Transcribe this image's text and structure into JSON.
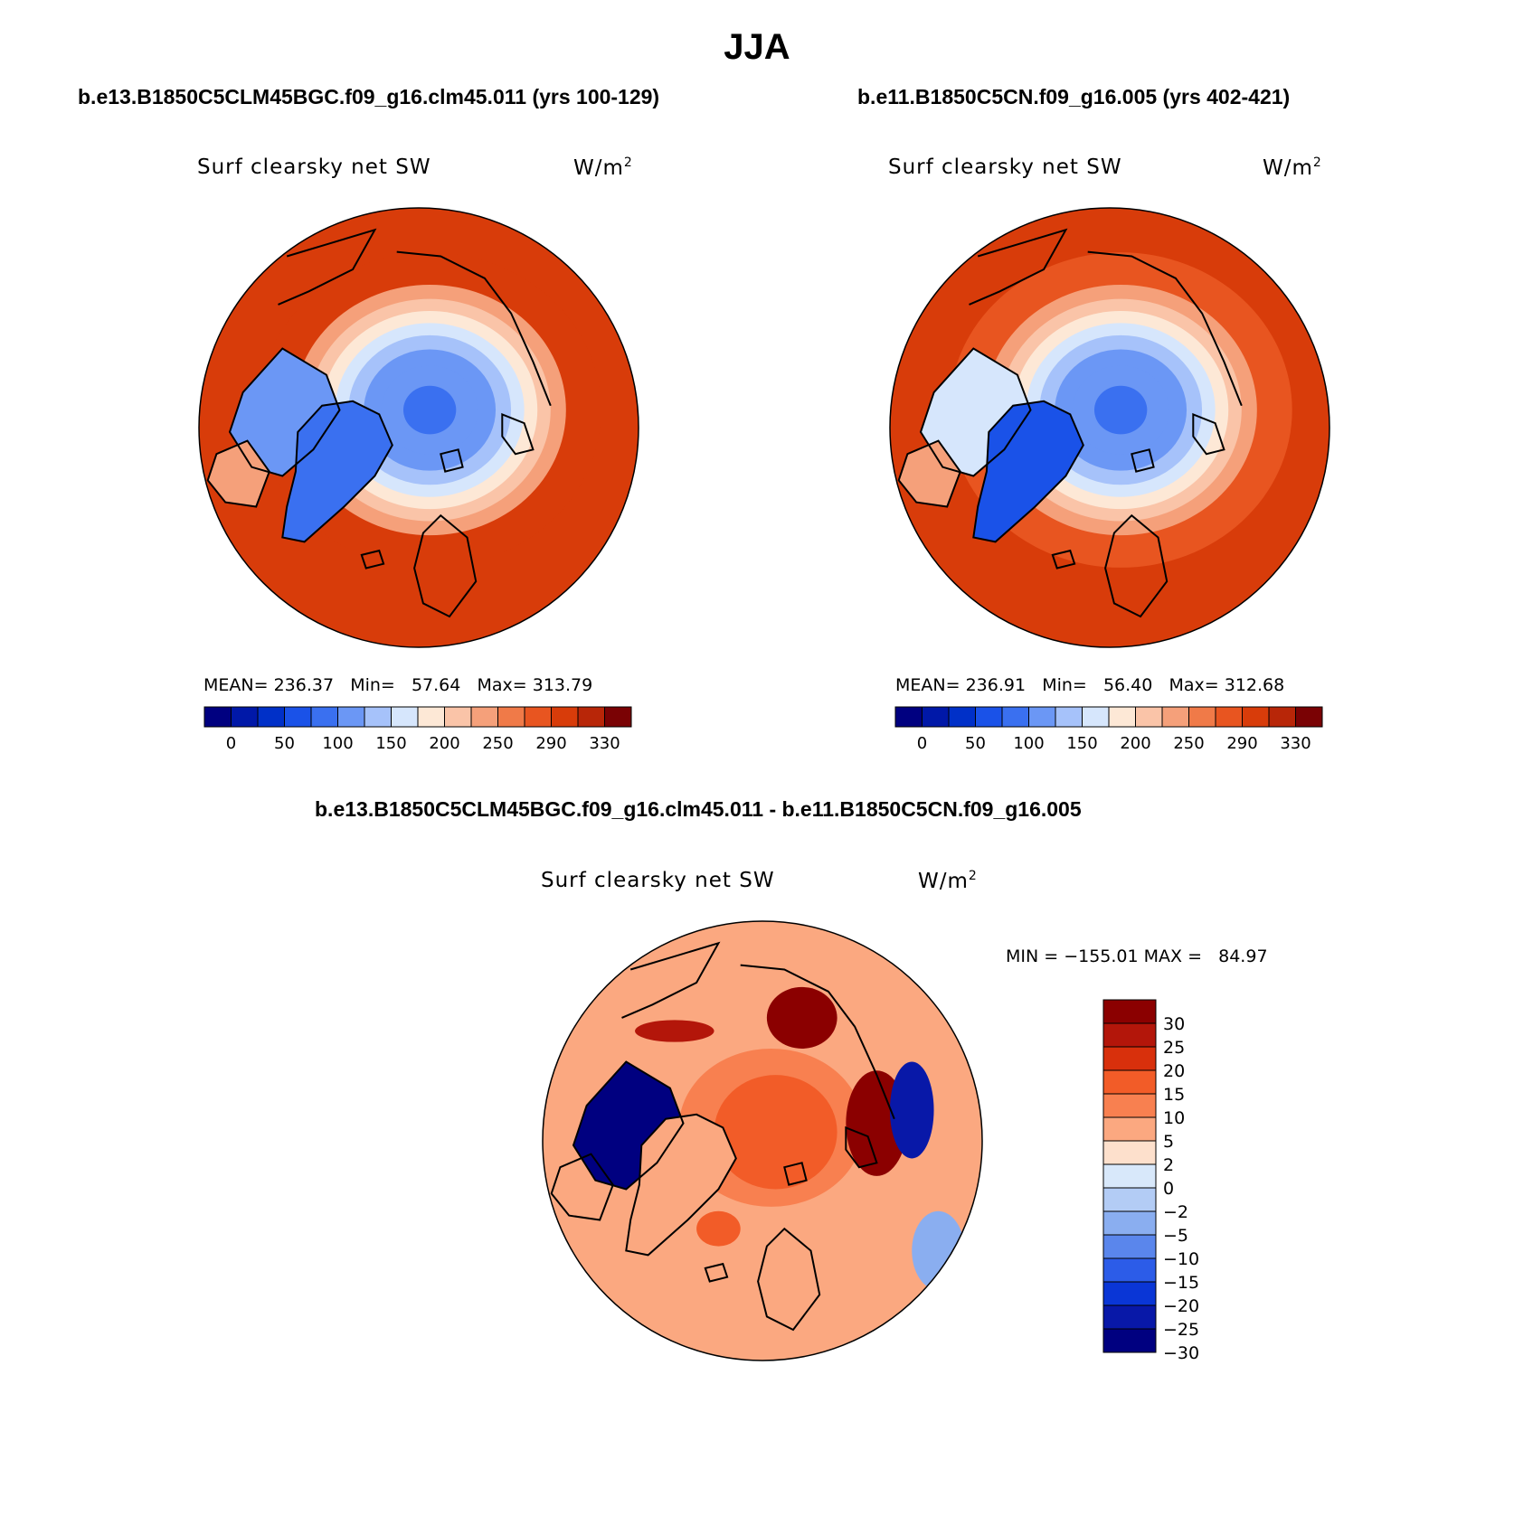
{
  "figure": {
    "title": "JJA"
  },
  "chart_data": [
    {
      "type": "heatmap",
      "projection": "polar-stereographic-north",
      "case_title": "b.e13.B1850C5CLM45BGC.f09_g16.clm45.011 (yrs 100-129)",
      "variable": "Surf clearsky net SW",
      "units": "W/m",
      "units_exp": "2",
      "stats": {
        "mean_label": "MEAN=",
        "mean": "236.37",
        "min_label": "Min=",
        "min": "57.64",
        "max_label": "Max=",
        "max": "313.79"
      },
      "colorbar": {
        "orientation": "horizontal",
        "colors": [
          "#000080",
          "#0018a8",
          "#0030c8",
          "#1a52e8",
          "#3a70f0",
          "#6b97f5",
          "#a6c2fa",
          "#d6e6fc",
          "#fde8d6",
          "#fac4a8",
          "#f5a07a",
          "#f07a48",
          "#e85520",
          "#d83c0a",
          "#b82608",
          "#7a0204"
        ],
        "tick_labels": [
          "0",
          "50",
          "100",
          "150",
          "200",
          "250",
          "290",
          "330"
        ]
      },
      "field": {
        "pole_value": 90,
        "ring_value": 305,
        "greenland_value": 90,
        "canadian_archipelago_value": 110
      }
    },
    {
      "type": "heatmap",
      "projection": "polar-stereographic-north",
      "case_title": "b.e11.B1850C5CN.f09_g16.005 (yrs 402-421)",
      "variable": "Surf clearsky net SW",
      "units": "W/m",
      "units_exp": "2",
      "stats": {
        "mean_label": "MEAN=",
        "mean": "236.91",
        "min_label": "Min=",
        "min": "56.40",
        "max_label": "Max=",
        "max": "312.68"
      },
      "colorbar": {
        "orientation": "horizontal",
        "colors": [
          "#000080",
          "#0018a8",
          "#0030c8",
          "#1a52e8",
          "#3a70f0",
          "#6b97f5",
          "#a6c2fa",
          "#d6e6fc",
          "#fde8d6",
          "#fac4a8",
          "#f5a07a",
          "#f07a48",
          "#e85520",
          "#d83c0a",
          "#b82608",
          "#7a0204"
        ],
        "tick_labels": [
          "0",
          "50",
          "100",
          "150",
          "200",
          "250",
          "290",
          "330"
        ]
      },
      "field": {
        "pole_value": 80,
        "ring_value": 300,
        "greenland_value": 70,
        "canadian_archipelago_value": 160
      }
    },
    {
      "type": "heatmap",
      "projection": "polar-stereographic-north",
      "case_title": "b.e13.B1850C5CLM45BGC.f09_g16.clm45.011 - b.e11.B1850C5CN.f09_g16.005",
      "variable": "Surf clearsky net SW",
      "units": "W/m",
      "units_exp": "2",
      "stats": {
        "text": "MIN = −155.01 MAX =   84.97"
      },
      "colorbar": {
        "orientation": "vertical",
        "colors": [
          "#8b0000",
          "#b3160a",
          "#d8300c",
          "#f25c28",
          "#f88050",
          "#fba880",
          "#fde0cc",
          "#d8e8fa",
          "#b3ccf5",
          "#8aaef0",
          "#5a86ec",
          "#2c5ce8",
          "#0a36d6",
          "#0818a8",
          "#000080"
        ],
        "tick_labels": [
          "30",
          "25",
          "20",
          "15",
          "10",
          "5",
          "2",
          "0",
          "−2",
          "−5",
          "−10",
          "−15",
          "−20",
          "−25",
          "−30"
        ]
      },
      "field": {
        "pole_value": 12,
        "background_value": 2,
        "archipelago_value": -35,
        "greenland_value": 2,
        "barents_positive": 30,
        "siberia_negative": -30
      }
    }
  ]
}
